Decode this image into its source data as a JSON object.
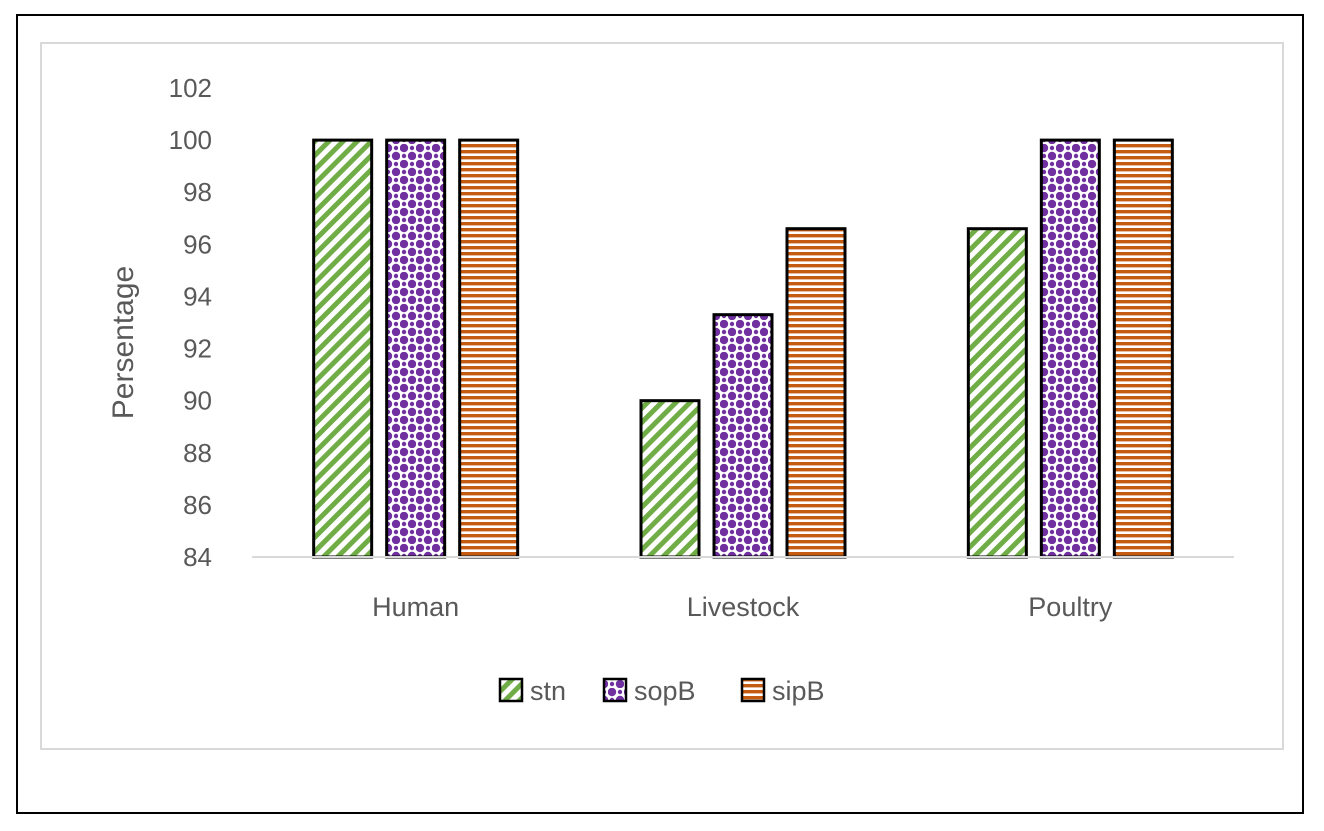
{
  "chart_data": {
    "type": "bar",
    "title": "",
    "xlabel": "",
    "ylabel": "Persentage",
    "ylim": [
      84,
      102
    ],
    "yticks": [
      84,
      86,
      88,
      90,
      92,
      94,
      96,
      98,
      100,
      102
    ],
    "categories": [
      "Human",
      "Livestock",
      "Poultry"
    ],
    "series": [
      {
        "name": "stn",
        "values": [
          100,
          90,
          96.6
        ],
        "color": "#70ad47",
        "pattern": "diagonal-stripes"
      },
      {
        "name": "sopB",
        "values": [
          100,
          93.3,
          100
        ],
        "color": "#7030a0",
        "pattern": "dotted-grid"
      },
      {
        "name": "sipB",
        "values": [
          100,
          96.6,
          100
        ],
        "color": "#c55a11",
        "pattern": "horizontal-stripes"
      }
    ],
    "grid": false,
    "legend": "bottom"
  }
}
